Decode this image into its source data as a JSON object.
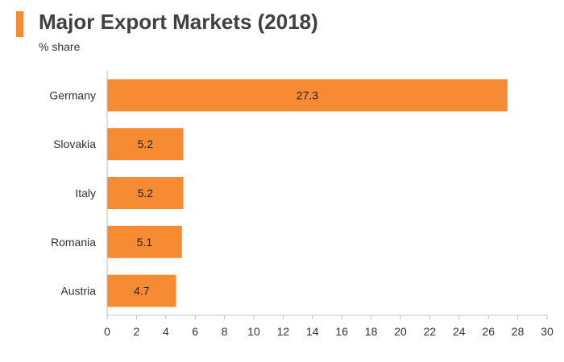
{
  "title": "Major Export Markets (2018)",
  "subtitle": "% share",
  "colors": {
    "bar": "#f68b33",
    "accent": "#f68b33",
    "axis": "#bfbfbf",
    "text": "#333333"
  },
  "chart_data": {
    "type": "bar",
    "orientation": "horizontal",
    "title": "Major Export Markets (2018)",
    "subtitle": "% share",
    "categories": [
      "Germany",
      "Slovakia",
      "Italy",
      "Romania",
      "Austria"
    ],
    "values": [
      27.3,
      5.2,
      5.2,
      5.1,
      4.7
    ],
    "data_labels": [
      "27.3",
      "5.2",
      "5.2",
      "5.1",
      "4.7"
    ],
    "xlim": [
      0,
      30
    ],
    "xticks": [
      0,
      2,
      4,
      6,
      8,
      10,
      12,
      14,
      16,
      18,
      20,
      22,
      24,
      26,
      28,
      30
    ],
    "grid": false,
    "legend": "none"
  }
}
